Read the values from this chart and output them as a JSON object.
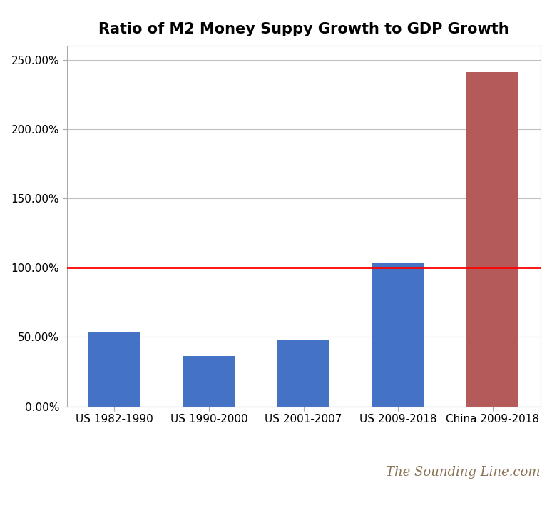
{
  "title": "Ratio of M2 Money Suppy Growth to GDP Growth",
  "categories": [
    "US 1982-1990",
    "US 1990-2000",
    "US 2001-2007",
    "US 2009-2018",
    "China 2009-2018"
  ],
  "values": [
    0.531,
    0.365,
    0.478,
    1.038,
    2.41
  ],
  "bar_colors": [
    "#4472C4",
    "#4472C4",
    "#4472C4",
    "#4472C4",
    "#B55A5A"
  ],
  "reference_line": 1.0,
  "reference_line_color": "#FF0000",
  "ylim": [
    0,
    2.6
  ],
  "yticks": [
    0.0,
    0.5,
    1.0,
    1.5,
    2.0,
    2.5
  ],
  "ytick_labels": [
    "0.00%",
    "50.00%",
    "100.00%",
    "150.00%",
    "200.00%",
    "250.00%"
  ],
  "background_color": "#FFFFFF",
  "watermark": "The Sounding Line.com",
  "watermark_color": "#8B7355",
  "title_fontsize": 15,
  "tick_fontsize": 11,
  "watermark_fontsize": 13,
  "border_color": "#AAAAAA"
}
